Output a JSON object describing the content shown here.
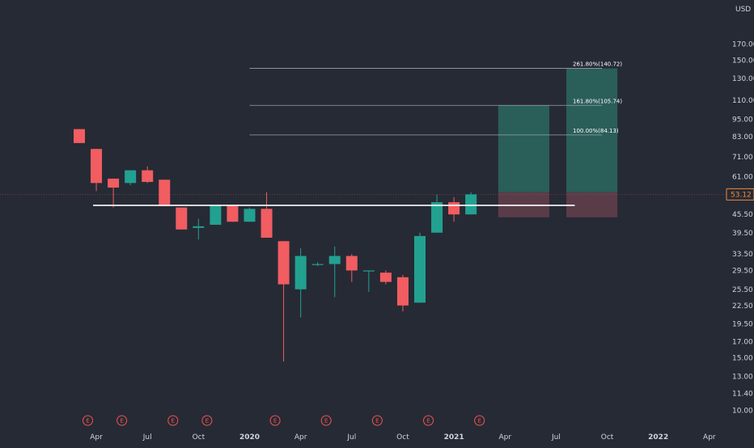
{
  "chart_data": {
    "type": "candlestick",
    "currency": "USD",
    "scale": "log",
    "ylim": [
      9.6,
      230
    ],
    "price_ticks": [
      10.0,
      11.4,
      13.0,
      15.0,
      17.0,
      19.5,
      22.5,
      25.5,
      29.5,
      33.5,
      39.5,
      45.5,
      61.0,
      71.0,
      83.0,
      95.0,
      110.0,
      130.0,
      150.0,
      170.0
    ],
    "current_price": "53.12",
    "current_price_value": 53.12,
    "time_labels": [
      {
        "label": "Apr",
        "index": 1,
        "major": false
      },
      {
        "label": "Jul",
        "index": 4,
        "major": false
      },
      {
        "label": "Oct",
        "index": 7,
        "major": false
      },
      {
        "label": "2020",
        "index": 10,
        "major": true
      },
      {
        "label": "Apr",
        "index": 13,
        "major": false
      },
      {
        "label": "Jul",
        "index": 16,
        "major": false
      },
      {
        "label": "Oct",
        "index": 19,
        "major": false
      },
      {
        "label": "2021",
        "index": 22,
        "major": true
      },
      {
        "label": "Apr",
        "index": 25,
        "major": false
      },
      {
        "label": "Jul",
        "index": 28,
        "major": false
      },
      {
        "label": "Oct",
        "index": 31,
        "major": false
      },
      {
        "label": "2022",
        "index": 34,
        "major": true
      },
      {
        "label": "Apr",
        "index": 37,
        "major": false
      }
    ],
    "candles": [
      {
        "o": 88.0,
        "h": 88.0,
        "l": 79.0,
        "c": 79.0
      },
      {
        "o": 75.5,
        "h": 75.5,
        "l": 54.5,
        "c": 58.0
      },
      {
        "o": 60.0,
        "h": 60.0,
        "l": 48.0,
        "c": 56.0
      },
      {
        "o": 58.0,
        "h": 64.0,
        "l": 57.0,
        "c": 64.0
      },
      {
        "o": 64.0,
        "h": 66.0,
        "l": 58.0,
        "c": 58.5
      },
      {
        "o": 59.5,
        "h": 59.5,
        "l": 48.5,
        "c": 48.5
      },
      {
        "o": 48.0,
        "h": 48.0,
        "l": 40.5,
        "c": 40.5
      },
      {
        "o": 41.0,
        "h": 44.0,
        "l": 37.5,
        "c": 41.5
      },
      {
        "o": 42.0,
        "h": 49.0,
        "l": 42.0,
        "c": 49.0
      },
      {
        "o": 49.0,
        "h": 49.0,
        "l": 43.0,
        "c": 43.0
      },
      {
        "o": 43.0,
        "h": 48.0,
        "l": 43.0,
        "c": 47.5
      },
      {
        "o": 47.5,
        "h": 54.0,
        "l": 38.0,
        "c": 38.0
      },
      {
        "o": 37.0,
        "h": 37.0,
        "l": 14.6,
        "c": 26.5
      },
      {
        "o": 25.5,
        "h": 35.0,
        "l": 20.5,
        "c": 33.0
      },
      {
        "o": 31.0,
        "h": 31.5,
        "l": 30.5,
        "c": 31.0
      },
      {
        "o": 31.0,
        "h": 35.5,
        "l": 24.0,
        "c": 33.0
      },
      {
        "o": 33.0,
        "h": 33.5,
        "l": 27.0,
        "c": 29.5
      },
      {
        "o": 29.5,
        "h": 29.5,
        "l": 25.0,
        "c": 29.5
      },
      {
        "o": 29.0,
        "h": 29.5,
        "l": 26.5,
        "c": 27.0
      },
      {
        "o": 28.0,
        "h": 28.5,
        "l": 21.5,
        "c": 22.5
      },
      {
        "o": 23.0,
        "h": 39.5,
        "l": 23.0,
        "c": 38.5
      },
      {
        "o": 39.5,
        "h": 53.0,
        "l": 39.5,
        "c": 50.0
      },
      {
        "o": 50.0,
        "h": 52.0,
        "l": 43.0,
        "c": 45.5
      },
      {
        "o": 45.5,
        "h": 54.0,
        "l": 45.5,
        "c": 53.12
      }
    ],
    "horizontal_line": {
      "value": 48.8,
      "from_index": 1,
      "to_index": 29
    },
    "fib_levels": [
      {
        "label": "261.80%(140.72)",
        "value": 140.72
      },
      {
        "label": "161.80%(105.74)",
        "value": 105.74
      },
      {
        "label": "100.00%(84.13)",
        "value": 84.13
      }
    ],
    "fib_span": {
      "from_index": 10,
      "to_index": 30.7
    },
    "positions": [
      {
        "from_index": 24.6,
        "to_index": 27.6,
        "entry": 54.0,
        "target": 105.74,
        "stop": 44.5
      },
      {
        "from_index": 28.6,
        "to_index": 31.6,
        "entry": 54.0,
        "target": 140.72,
        "stop": 44.5
      }
    ],
    "earnings_markers": [
      {
        "label": "E",
        "index": 0.5
      },
      {
        "label": "E",
        "index": 2.5
      },
      {
        "label": "E",
        "index": 5.5
      },
      {
        "label": "E",
        "index": 7.5
      },
      {
        "label": "E",
        "index": 11.5
      },
      {
        "label": "E",
        "index": 14.5
      },
      {
        "label": "E",
        "index": 17.5
      },
      {
        "label": "E",
        "index": 20.5
      },
      {
        "label": "E",
        "index": 23.5
      }
    ],
    "colors": {
      "background": "#262a35",
      "up": "#22a191",
      "down": "#f15d61",
      "axis_text": "#d1d4dc",
      "fib_line": "#9aa0ad",
      "level_line": "#ffffff",
      "target_zone": "#2a5e59",
      "stop_zone": "#5a3c48",
      "price_tag": "#f0883e",
      "earnings": "#f05350"
    }
  }
}
